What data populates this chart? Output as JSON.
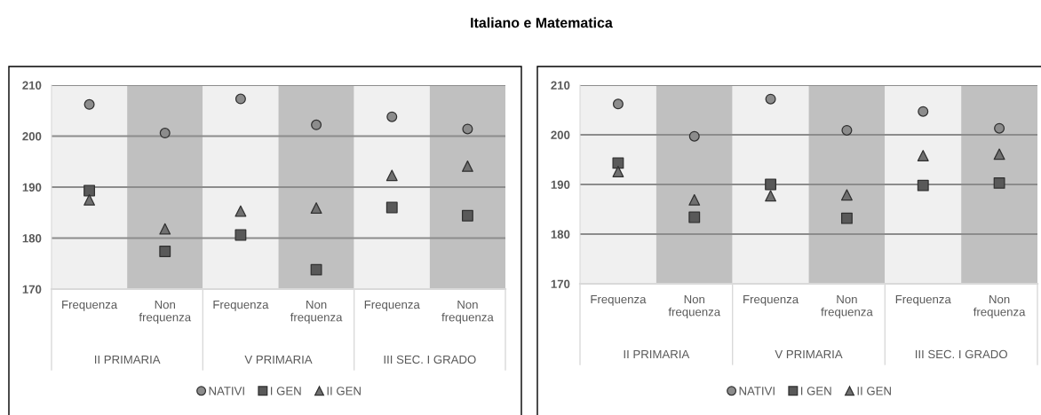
{
  "chart_data": [
    {
      "type": "scatter",
      "title": "Italiano e Matematica",
      "categories": [
        "Frequenza",
        "Non frequenza",
        "Frequenza",
        "Non frequenza",
        "Frequenza",
        "Non frequenza"
      ],
      "annotations": [
        "II PRIMARIA",
        "V PRIMARIA",
        "III SEC. I GRADO"
      ],
      "series": [
        {
          "name": "NATIVI",
          "color": "#8c8c8c",
          "marker": "circle",
          "values": [
            206.2,
            200.6,
            207.3,
            202.2,
            203.8,
            201.4
          ]
        },
        {
          "name": "I GEN",
          "color": "#595959",
          "marker": "square",
          "values": [
            189.3,
            177.4,
            180.6,
            173.8,
            186.0,
            184.4
          ]
        },
        {
          "name": "II GEN",
          "color": "#707070",
          "marker": "triangle",
          "values": [
            187.5,
            181.8,
            185.3,
            185.9,
            192.3,
            194.1
          ]
        }
      ],
      "ylim": [
        170,
        210
      ],
      "yticks": [
        170,
        180,
        190,
        200,
        210
      ],
      "grid": "y",
      "legend": "bottom"
    },
    {
      "type": "scatter",
      "categories": [
        "Frequenza",
        "Non frequenza",
        "Frequenza",
        "Non frequenza",
        "Frequenza",
        "Non frequenza"
      ],
      "annotations": [
        "II PRIMARIA",
        "V PRIMARIA",
        "III SEC. I GRADO"
      ],
      "series": [
        {
          "name": "NATIVI",
          "color": "#8c8c8c",
          "marker": "circle",
          "values": [
            206.2,
            199.7,
            207.2,
            200.9,
            204.7,
            201.3
          ]
        },
        {
          "name": "I GEN",
          "color": "#595959",
          "marker": "square",
          "values": [
            194.3,
            183.4,
            190.0,
            183.2,
            189.8,
            190.3
          ]
        },
        {
          "name": "II GEN",
          "color": "#707070",
          "marker": "triangle",
          "values": [
            192.6,
            186.9,
            187.7,
            187.9,
            195.8,
            196.1
          ]
        }
      ],
      "ylim": [
        170,
        210
      ],
      "yticks": [
        170,
        180,
        190,
        200,
        210
      ],
      "grid": "y",
      "legend": "bottom"
    }
  ]
}
